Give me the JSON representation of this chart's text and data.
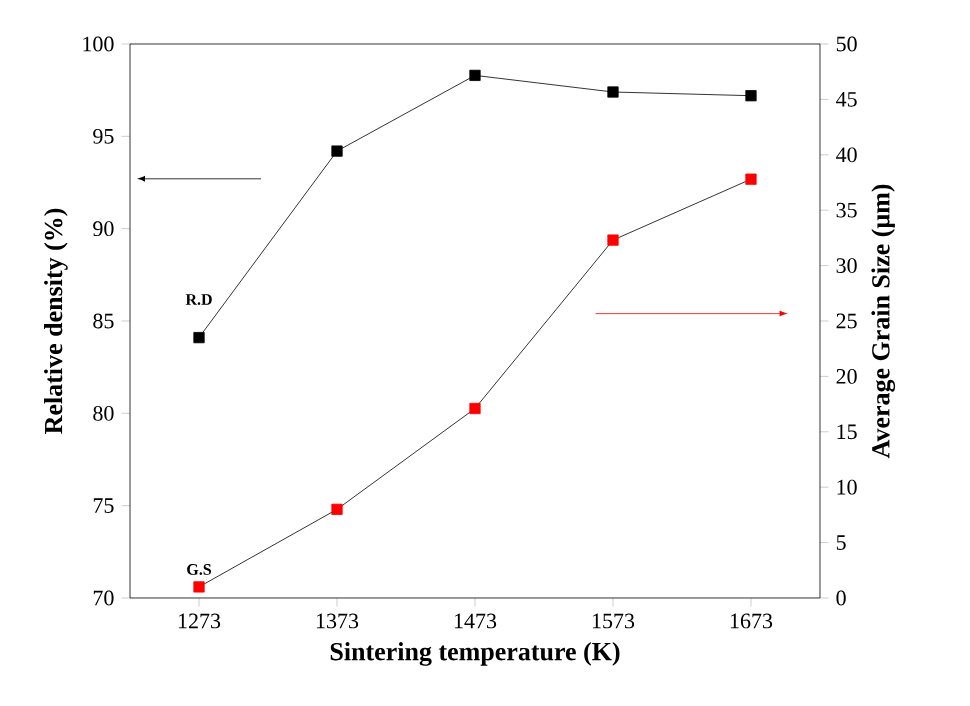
{
  "chart_data": {
    "type": "line",
    "xlabel": "Sintering temperature (K)",
    "ylabel": "Relative density (%)",
    "y2label": "Average Grain Size (μm)",
    "x": [
      1273,
      1373,
      1473,
      1573,
      1673
    ],
    "series": [
      {
        "color": "#000000",
        "values": [
          84.1,
          94.2,
          98.3,
          97.4,
          97.2
        ]
      },
      {
        "color": "#ff0000",
        "axis": "y2",
        "values": [
          1.0,
          8.0,
          17.1,
          32.3,
          37.8
        ]
      }
    ],
    "xlim": [
      1223,
      1723
    ],
    "xticks": [
      1273,
      1373,
      1473,
      1573,
      1673
    ],
    "ylim": [
      70,
      100
    ],
    "yticks": [
      70,
      75,
      80,
      85,
      90,
      95,
      100
    ],
    "y2lim": [
      0,
      50
    ],
    "y2ticks": [
      0,
      5,
      10,
      15,
      20,
      25,
      30,
      35,
      40,
      45,
      50
    ],
    "annotations": [
      "R.D",
      "G.S"
    ],
    "marker": "square",
    "grid": false
  }
}
